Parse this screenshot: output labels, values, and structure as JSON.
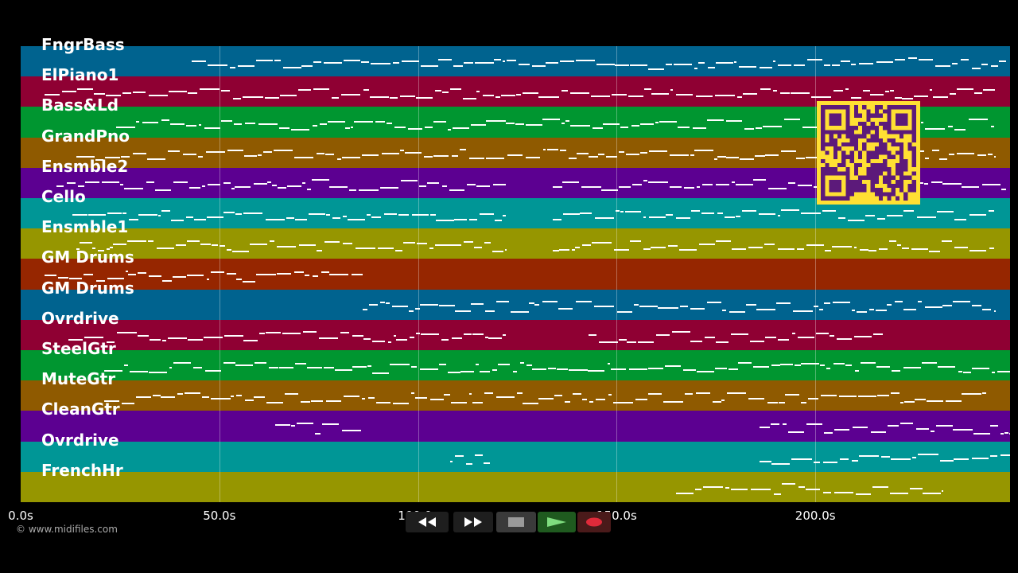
{
  "tracks": [
    {
      "name": "FngrBass",
      "color": "#00638f"
    },
    {
      "name": "ElPiano1",
      "color": "#8f0033"
    },
    {
      "name": "Bass&Ld",
      "color": "#009630"
    },
    {
      "name": "GrandPno",
      "color": "#8f5a00"
    },
    {
      "name": "Ensmble2",
      "color": "#5c0091"
    },
    {
      "name": "Cello",
      "color": "#009696"
    },
    {
      "name": "Ensmble1",
      "color": "#969600"
    },
    {
      "name": "GM Drums",
      "color": "#962600"
    },
    {
      "name": "GM Drums",
      "color": "#00638f"
    },
    {
      "name": "Ovrdrive",
      "color": "#8f0033"
    },
    {
      "name": "SteelGtr",
      "color": "#009630"
    },
    {
      "name": "MuteGtr",
      "color": "#8f5a00"
    },
    {
      "name": "CleanGtr",
      "color": "#5c0091"
    },
    {
      "name": "Ovrdrive",
      "color": "#009696"
    },
    {
      "name": "FrenchHr",
      "color": "#969600"
    }
  ],
  "timeline": {
    "labels": [
      "0.0s",
      "50.0s",
      "100.0s",
      "150.0s",
      "200.0s"
    ],
    "seconds_max": 249
  },
  "note_ranges": [
    [
      [
        43,
        248
      ]
    ],
    [
      [
        6,
        245
      ]
    ],
    [
      [
        24,
        245
      ]
    ],
    [
      [
        14,
        67
      ],
      [
        64,
        245
      ]
    ],
    [
      [
        9,
        122
      ],
      [
        134,
        248
      ]
    ],
    [
      [
        13,
        122
      ],
      [
        134,
        245
      ]
    ],
    [
      [
        14,
        122
      ],
      [
        134,
        245
      ]
    ],
    [
      [
        6,
        86
      ]
    ],
    [
      [
        86,
        245
      ]
    ],
    [
      [
        12,
        122
      ],
      [
        143,
        217
      ]
    ],
    [
      [
        21,
        249
      ]
    ],
    [
      [
        21,
        243
      ]
    ],
    [
      [
        64,
        86
      ],
      [
        186,
        249
      ]
    ],
    [
      [
        108,
        118
      ],
      [
        186,
        249
      ]
    ],
    [
      [
        165,
        232
      ]
    ]
  ],
  "copyright": "© www.midifiles.com",
  "transport": {
    "rewind": "rewind-icon",
    "fast_forward": "fast-forward-icon",
    "stop": "stop-icon",
    "play": "play-icon",
    "record": "record-icon"
  },
  "qr_code": "qr-code-icon"
}
